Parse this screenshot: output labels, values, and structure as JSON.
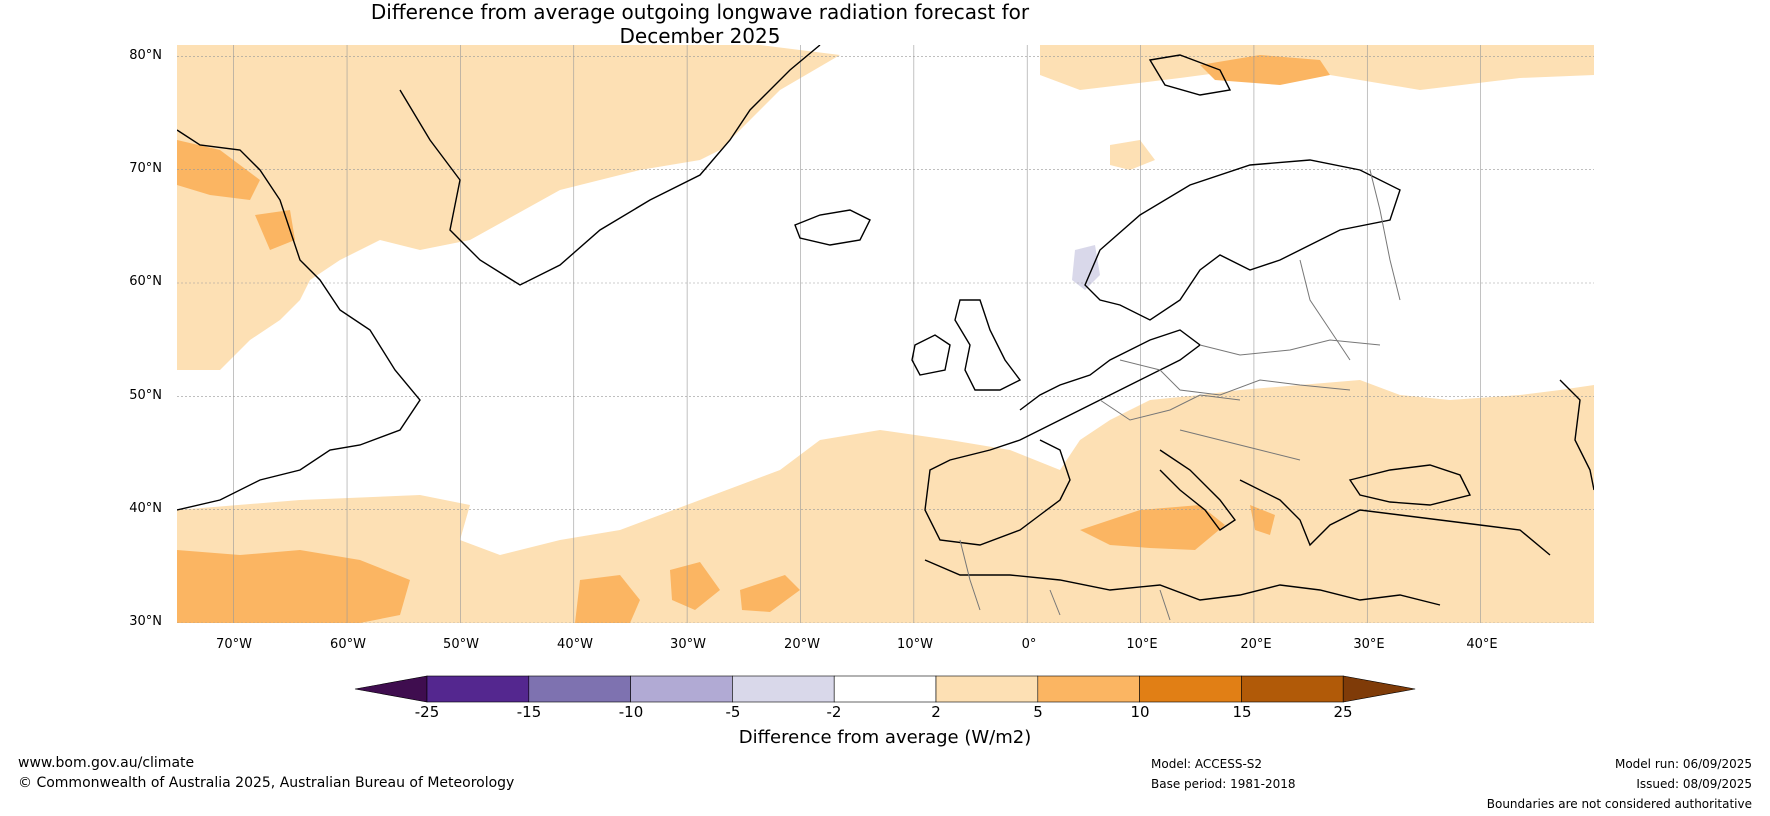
{
  "title": {
    "line1": "Difference from average outgoing longwave radiation forecast for",
    "line2": "December 2025"
  },
  "map": {
    "extent": {
      "lon": [
        -75,
        50
      ],
      "lat": [
        30,
        81
      ]
    },
    "lat_labels": [
      "80°N",
      "70°N",
      "60°N",
      "50°N",
      "40°N",
      "30°N"
    ],
    "lon_labels": [
      "70°W",
      "60°W",
      "50°W",
      "40°W",
      "30°W",
      "20°W",
      "10°W",
      "0°",
      "10°E",
      "20°E",
      "30°E",
      "40°E"
    ],
    "gridlines": true
  },
  "colorbar": {
    "label": "Difference from average (W/m2)",
    "ticks": [
      "-25",
      "-15",
      "-10",
      "-5",
      "-2",
      "2",
      "5",
      "10",
      "15",
      "25"
    ],
    "colors": [
      "#3f0d4f",
      "#54278f",
      "#7e72b0",
      "#b1aad4",
      "#d9d8ea",
      "#ffffff",
      "#fde0b4",
      "#fbb562",
      "#e17f15",
      "#b15a08",
      "#7f3b08"
    ],
    "extend": "both"
  },
  "footer": {
    "website": "www.bom.gov.au/climate",
    "copyright": "© Commonwealth of Australia 2025, Australian Bureau of Meteorology",
    "model": "Model: ACCESS-S2",
    "base_period": "Base period: 1981-2018",
    "model_run": "Model run: 06/09/2025",
    "issued": "Issued: 08/09/2025",
    "disclaimer": "Boundaries are not considered authoritative"
  }
}
